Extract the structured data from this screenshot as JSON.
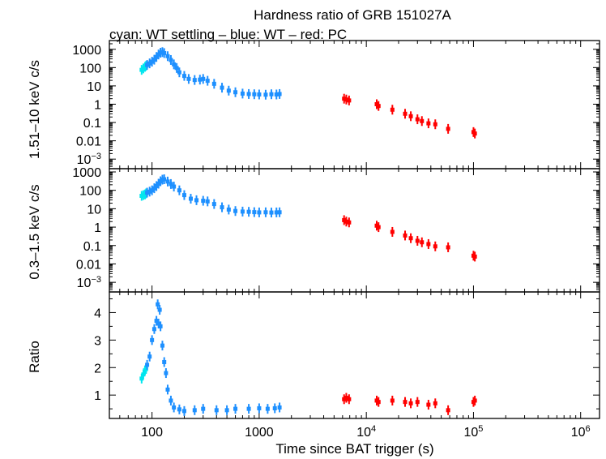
{
  "chart_data": {
    "type": "scatter",
    "title": "Hardness ratio of GRB 151027A",
    "subtitle": "cyan: WT settling – blue: WT – red: PC",
    "xlabel": "Time since BAT trigger (s)",
    "xscale": "log",
    "xlim": [
      40,
      1500000
    ],
    "x_tick_labels": [
      {
        "value": 100,
        "label": "100",
        "exp": ""
      },
      {
        "value": 1000,
        "label": "1000",
        "exp": ""
      },
      {
        "value": 10000,
        "label": "10",
        "exp": "4"
      },
      {
        "value": 100000,
        "label": "10",
        "exp": "5"
      },
      {
        "value": 1000000,
        "label": "10",
        "exp": "6"
      }
    ],
    "colors": {
      "settling": "#00e5ee",
      "wt": "#1e90ff",
      "pc": "#ff0000"
    },
    "panels": [
      {
        "id": "hard",
        "ylabel": "1.51–10 keV c/s",
        "yscale": "log",
        "ylim": [
          0.0003,
          3000
        ],
        "y_tick_labels": [
          {
            "value": 1000,
            "label": "1000",
            "exp": ""
          },
          {
            "value": 100,
            "label": "100",
            "exp": ""
          },
          {
            "value": 10,
            "label": "10",
            "exp": ""
          },
          {
            "value": 1,
            "label": "1",
            "exp": ""
          },
          {
            "value": 0.1,
            "label": "0.1",
            "exp": ""
          },
          {
            "value": 0.01,
            "label": "0.01",
            "exp": ""
          },
          {
            "value": 0.001,
            "label": "10",
            "exp": "−3"
          }
        ],
        "series": [
          {
            "name": "WT settling",
            "color_key": "settling",
            "points": [
              [
                80,
                75
              ],
              [
                83,
                90
              ],
              [
                86,
                110
              ],
              [
                88,
                125
              ]
            ]
          },
          {
            "name": "WT",
            "color_key": "wt",
            "points": [
              [
                90,
                140
              ],
              [
                95,
                170
              ],
              [
                100,
                210
              ],
              [
                105,
                270
              ],
              [
                110,
                380
              ],
              [
                115,
                520
              ],
              [
                120,
                650
              ],
              [
                125,
                700
              ],
              [
                130,
                620
              ],
              [
                140,
                420
              ],
              [
                150,
                260
              ],
              [
                160,
                150
              ],
              [
                170,
                95
              ],
              [
                180,
                55
              ],
              [
                200,
                35
              ],
              [
                220,
                24
              ],
              [
                250,
                21
              ],
              [
                280,
                22
              ],
              [
                300,
                24
              ],
              [
                330,
                19
              ],
              [
                380,
                13
              ],
              [
                450,
                8
              ],
              [
                520,
                5.5
              ],
              [
                600,
                4.5
              ],
              [
                700,
                3.8
              ],
              [
                800,
                3.6
              ],
              [
                900,
                3.5
              ],
              [
                1000,
                3.4
              ],
              [
                1150,
                3.3
              ],
              [
                1300,
                3.5
              ],
              [
                1450,
                3.4
              ],
              [
                1550,
                3.6
              ]
            ]
          },
          {
            "name": "PC",
            "color_key": "pc",
            "points": [
              [
                6200,
                2.0
              ],
              [
                6500,
                1.8
              ],
              [
                6900,
                1.6
              ],
              [
                12500,
                1.0
              ],
              [
                13000,
                0.8
              ],
              [
                17500,
                0.5
              ],
              [
                23000,
                0.3
              ],
              [
                26000,
                0.22
              ],
              [
                30000,
                0.15
              ],
              [
                33000,
                0.12
              ],
              [
                38000,
                0.09
              ],
              [
                44000,
                0.08
              ],
              [
                58000,
                0.045
              ],
              [
                100000,
                0.03
              ],
              [
                103000,
                0.025
              ]
            ]
          }
        ]
      },
      {
        "id": "soft",
        "ylabel": "0.3–1.5 keV c/s",
        "yscale": "log",
        "ylim": [
          0.0003,
          1500
        ],
        "y_tick_labels": [
          {
            "value": 1000,
            "label": "1000",
            "exp": ""
          },
          {
            "value": 100,
            "label": "100",
            "exp": ""
          },
          {
            "value": 10,
            "label": "10",
            "exp": ""
          },
          {
            "value": 1,
            "label": "1",
            "exp": ""
          },
          {
            "value": 0.1,
            "label": "0.1",
            "exp": ""
          },
          {
            "value": 0.01,
            "label": "0.01",
            "exp": ""
          },
          {
            "value": 0.001,
            "label": "10",
            "exp": "−3"
          }
        ],
        "series": [
          {
            "name": "WT settling",
            "color_key": "settling",
            "points": [
              [
                80,
                50
              ],
              [
                83,
                55
              ],
              [
                86,
                60
              ],
              [
                88,
                68
              ]
            ]
          },
          {
            "name": "WT",
            "color_key": "wt",
            "points": [
              [
                90,
                75
              ],
              [
                95,
                85
              ],
              [
                100,
                100
              ],
              [
                105,
                130
              ],
              [
                110,
                170
              ],
              [
                115,
                230
              ],
              [
                120,
                310
              ],
              [
                125,
                380
              ],
              [
                130,
                400
              ],
              [
                140,
                300
              ],
              [
                150,
                220
              ],
              [
                160,
                160
              ],
              [
                180,
                100
              ],
              [
                200,
                55
              ],
              [
                230,
                35
              ],
              [
                260,
                29
              ],
              [
                300,
                27
              ],
              [
                330,
                25
              ],
              [
                380,
                18
              ],
              [
                450,
                12
              ],
              [
                520,
                9
              ],
              [
                600,
                7.5
              ],
              [
                700,
                7
              ],
              [
                800,
                6.8
              ],
              [
                900,
                6.5
              ],
              [
                1000,
                6.3
              ],
              [
                1150,
                6.4
              ],
              [
                1300,
                6.2
              ],
              [
                1450,
                6.3
              ],
              [
                1550,
                6.4
              ]
            ]
          },
          {
            "name": "PC",
            "color_key": "pc",
            "points": [
              [
                6200,
                2.4
              ],
              [
                6500,
                2.0
              ],
              [
                6900,
                1.8
              ],
              [
                12500,
                1.2
              ],
              [
                13000,
                1.0
              ],
              [
                17500,
                0.55
              ],
              [
                23000,
                0.35
              ],
              [
                26000,
                0.25
              ],
              [
                30000,
                0.18
              ],
              [
                33000,
                0.15
              ],
              [
                38000,
                0.12
              ],
              [
                44000,
                0.09
              ],
              [
                58000,
                0.08
              ],
              [
                100000,
                0.028
              ],
              [
                103000,
                0.025
              ]
            ]
          }
        ]
      },
      {
        "id": "ratio",
        "ylabel": "Ratio",
        "yscale": "linear",
        "ylim": [
          0.15,
          4.75
        ],
        "y_tick_labels": [
          {
            "value": 4,
            "label": "4",
            "exp": ""
          },
          {
            "value": 3,
            "label": "3",
            "exp": ""
          },
          {
            "value": 2,
            "label": "2",
            "exp": ""
          },
          {
            "value": 1,
            "label": "1",
            "exp": ""
          }
        ],
        "series": [
          {
            "name": "WT settling",
            "color_key": "settling",
            "points": [
              [
                80,
                1.6
              ],
              [
                83,
                1.75
              ],
              [
                86,
                1.9
              ],
              [
                88,
                1.95
              ]
            ]
          },
          {
            "name": "WT",
            "color_key": "wt",
            "points": [
              [
                90,
                2.1
              ],
              [
                95,
                2.4
              ],
              [
                100,
                3.0
              ],
              [
                105,
                3.4
              ],
              [
                110,
                3.7
              ],
              [
                113,
                4.3
              ],
              [
                115,
                3.6
              ],
              [
                118,
                4.1
              ],
              [
                120,
                3.5
              ],
              [
                125,
                2.8
              ],
              [
                130,
                2.2
              ],
              [
                135,
                1.8
              ],
              [
                140,
                1.2
              ],
              [
                150,
                0.8
              ],
              [
                160,
                0.55
              ],
              [
                180,
                0.48
              ],
              [
                200,
                0.42
              ],
              [
                250,
                0.45
              ],
              [
                300,
                0.5
              ],
              [
                400,
                0.45
              ],
              [
                500,
                0.45
              ],
              [
                600,
                0.5
              ],
              [
                800,
                0.5
              ],
              [
                1000,
                0.52
              ],
              [
                1200,
                0.5
              ],
              [
                1400,
                0.52
              ],
              [
                1550,
                0.55
              ]
            ]
          },
          {
            "name": "PC",
            "color_key": "pc",
            "points": [
              [
                6200,
                0.85
              ],
              [
                6500,
                0.9
              ],
              [
                6900,
                0.85
              ],
              [
                12500,
                0.8
              ],
              [
                13000,
                0.75
              ],
              [
                17500,
                0.8
              ],
              [
                23000,
                0.75
              ],
              [
                26000,
                0.7
              ],
              [
                30000,
                0.75
              ],
              [
                38000,
                0.65
              ],
              [
                44000,
                0.7
              ],
              [
                58000,
                0.45
              ],
              [
                100000,
                0.75
              ],
              [
                103000,
                0.8
              ]
            ]
          }
        ]
      }
    ]
  }
}
